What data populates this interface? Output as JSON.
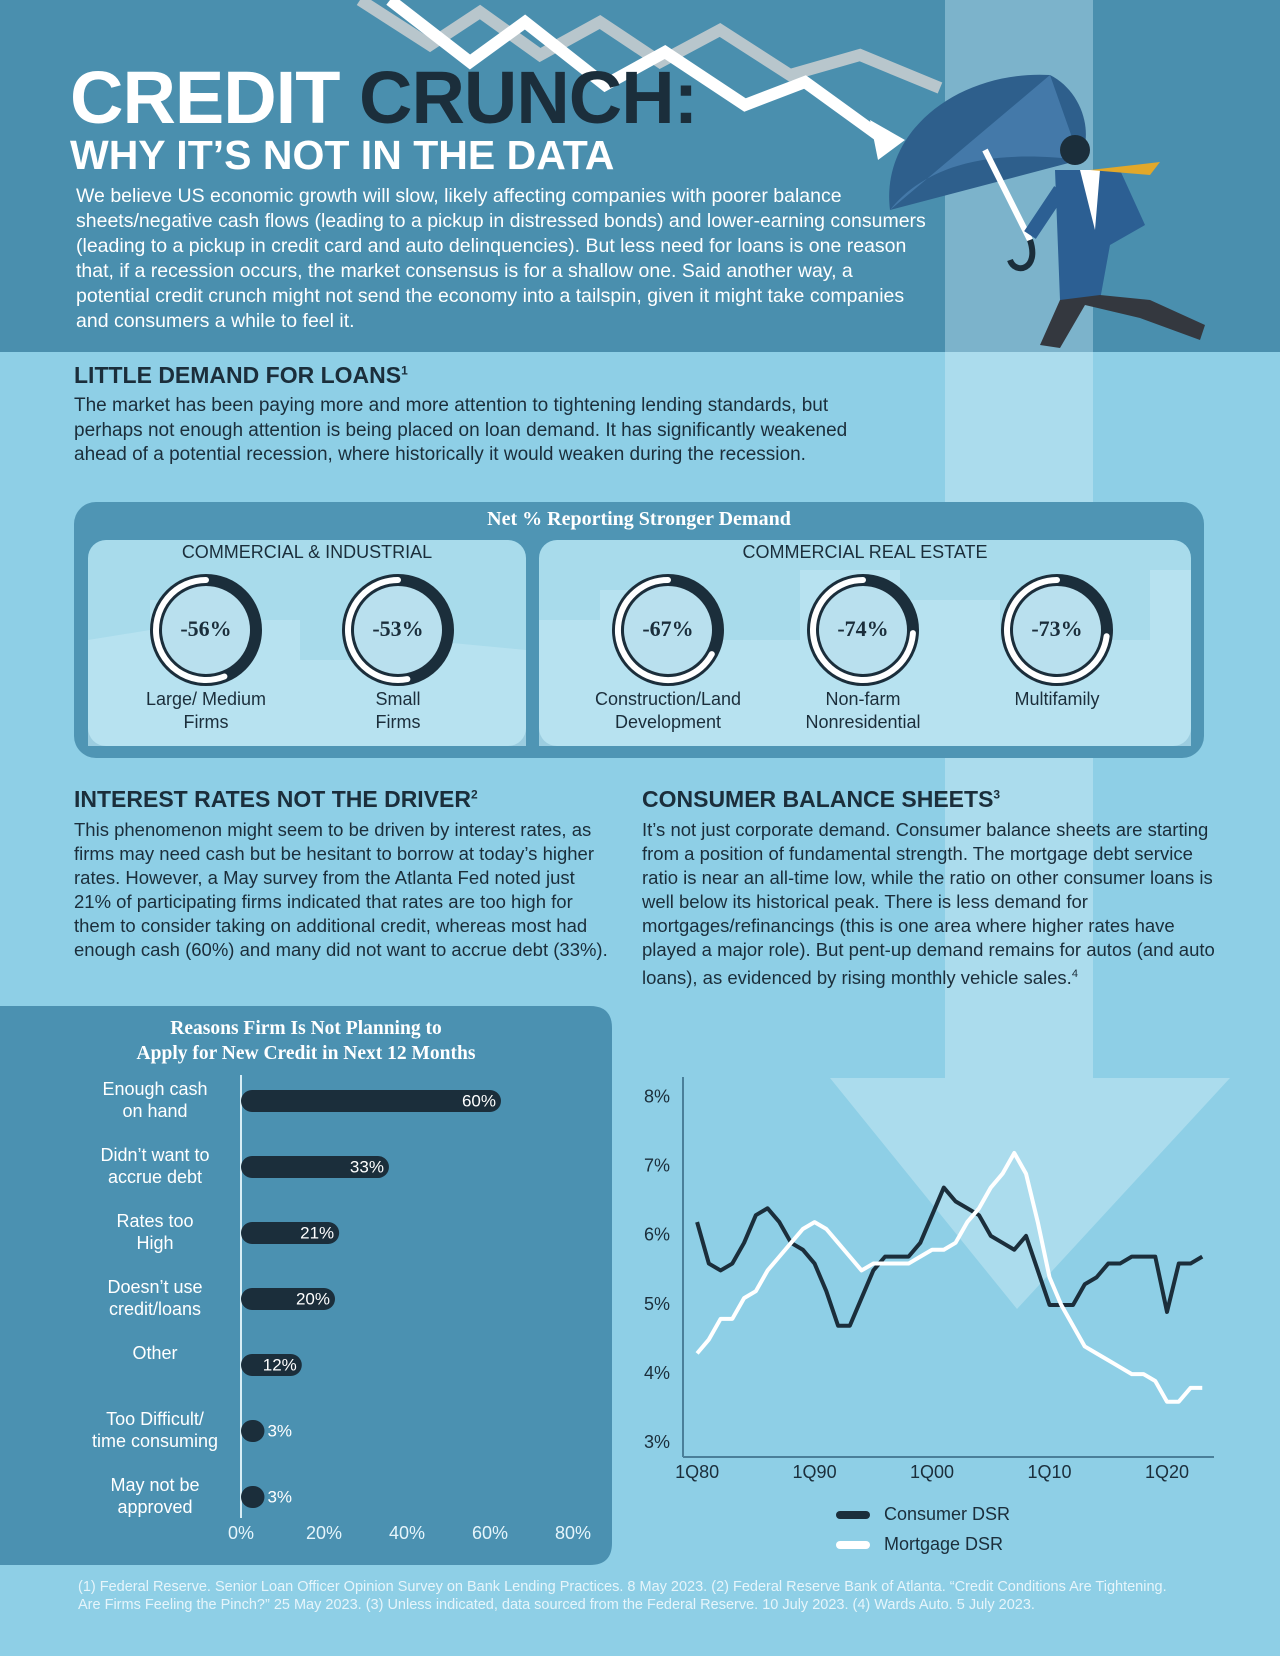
{
  "header": {
    "title_part1": "CREDIT",
    "title_part2": "CRUNCH:",
    "subtitle": "WHY IT’S NOT IN THE DATA",
    "intro": "We believe US economic growth will slow, likely affecting companies with poorer balance sheets/negative cash flows (leading to a pickup in distressed bonds) and lower-earning consumers (leading to a pickup in credit card and auto delinquencies). But less need for loans is one reason that, if a recession occurs, the market consensus is for a shallow one. Said another way, a potential credit crunch might not send the economy into a tailspin, given it might take companies and consumers a while to feel it."
  },
  "sections": [
    {
      "heading": "LITTLE DEMAND FOR LOANS",
      "note": "1",
      "text": "The market has been paying more and more attention to tightening lending standards, but perhaps not enough attention is being placed on loan demand. It has significantly weakened ahead of a potential recession, where historically it would weaken during the recession."
    },
    {
      "heading": "INTEREST RATES NOT THE DRIVER",
      "note": "2",
      "text": "This phenomenon might seem to be driven by interest rates, as firms may need cash but be hesitant to borrow at today’s higher rates. However, a May survey from the Atlanta Fed noted just 21% of participating firms indicated that rates are too high for them to consider taking on additional credit, whereas most had enough cash (60%) and many did not want to accrue debt (33%)."
    },
    {
      "heading": "CONSUMER BALANCE SHEETS",
      "note": "3",
      "text": "It’s not just corporate demand. Consumer balance sheets are starting from a position of fundamental strength. The mortgage debt service ratio is near an all-time low, while the ratio on other consumer loans is well below its historical peak. There is less demand for mortgages/refinancings (this is one area where higher rates have played a major role). But pent-up demand remains for autos (and auto loans), as evidenced by rising monthly vehicle sales.",
      "text_note": "4"
    }
  ],
  "footer": "(1) Federal Reserve. Senior Loan Officer Opinion Survey on Bank Lending Practices. 8 May 2023. (2) Federal Reserve Bank of Atlanta. “Credit Conditions Are Tightening. Are Firms Feeling the Pinch?” 25 May 2023. (3) Unless indicated, data sourced from the Federal Reserve. 10 July 2023. (4) Wards Auto. 5 July 2023.",
  "chart_data": [
    {
      "type": "gauge",
      "title": "Net % Reporting Stronger Demand",
      "color": "#ffffff",
      "groups": [
        {
          "name": "COMMERCIAL & INDUSTRIAL",
          "categories": [
            "Large/ Medium\nFirms",
            "Small\nFirms"
          ],
          "values": [
            -56,
            -53
          ],
          "value_labels": [
            "-56%",
            "-53%"
          ]
        },
        {
          "name": "COMMERCIAL REAL ESTATE",
          "categories": [
            "Construction/Land\nDevelopment",
            "Non-farm\nNonresidential",
            "Multifamily"
          ],
          "values": [
            -67,
            -74,
            -73
          ],
          "value_labels": [
            "-67%",
            "-74%",
            "-73%"
          ]
        }
      ]
    },
    {
      "type": "bar",
      "orientation": "horizontal",
      "title": "Reasons Firm Is Not Planning to\nApply for New Credit in Next 12 Months",
      "categories": [
        "Enough cash\non hand",
        "Didn’t want to\naccrue debt",
        "Rates too\nHigh",
        "Doesn’t use\ncredit/loans",
        "Other",
        "Too Difficult/\ntime consuming",
        "May not be\napproved"
      ],
      "values": [
        60,
        33,
        21,
        20,
        12,
        3,
        3
      ],
      "value_labels": [
        "60%",
        "33%",
        "21%",
        "20%",
        "12%",
        "3%",
        "3%"
      ],
      "color": "#1b2e3b",
      "xlim": [
        0,
        80
      ],
      "xticks": [
        {
          "value": 0,
          "label": "0%"
        },
        {
          "value": 20,
          "label": "20%"
        },
        {
          "value": 40,
          "label": "40%"
        },
        {
          "value": 60,
          "label": "60%"
        },
        {
          "value": 80,
          "label": "80%"
        }
      ]
    },
    {
      "type": "line",
      "x": [
        1980,
        1981,
        1982,
        1983,
        1984,
        1985,
        1986,
        1987,
        1988,
        1989,
        1990,
        1991,
        1992,
        1993,
        1994,
        1995,
        1996,
        1997,
        1998,
        1999,
        2000,
        2001,
        2002,
        2003,
        2004,
        2005,
        2006,
        2007,
        2008,
        2009,
        2010,
        2011,
        2012,
        2013,
        2014,
        2015,
        2016,
        2017,
        2018,
        2019,
        2020,
        2021,
        2022,
        2023
      ],
      "xlim": [
        1978.8,
        2024
      ],
      "xticks": [
        {
          "value": 1980,
          "label": "1Q80"
        },
        {
          "value": 1990,
          "label": "1Q90"
        },
        {
          "value": 2000,
          "label": "1Q00"
        },
        {
          "value": 2010,
          "label": "1Q10"
        },
        {
          "value": 2020,
          "label": "1Q20"
        }
      ],
      "ylim": [
        2.8,
        8.3
      ],
      "yticks": [
        {
          "value": 3,
          "label": "3%"
        },
        {
          "value": 4,
          "label": "4%"
        },
        {
          "value": 5,
          "label": "5%"
        },
        {
          "value": 6,
          "label": "6%"
        },
        {
          "value": 7,
          "label": "7%"
        },
        {
          "value": 8,
          "label": "8%"
        }
      ],
      "series": [
        {
          "name": "Consumer DSR",
          "color": "#1b2e3b",
          "values": [
            6.2,
            5.6,
            5.5,
            5.6,
            5.9,
            6.3,
            6.4,
            6.2,
            5.9,
            5.8,
            5.6,
            5.2,
            4.7,
            4.7,
            5.1,
            5.5,
            5.7,
            5.7,
            5.7,
            5.9,
            6.3,
            6.7,
            6.5,
            6.4,
            6.3,
            6.0,
            5.9,
            5.8,
            6.0,
            5.5,
            5.0,
            5.0,
            5.0,
            5.3,
            5.4,
            5.6,
            5.6,
            5.7,
            5.7,
            5.7,
            4.9,
            5.6,
            5.6,
            5.7
          ]
        },
        {
          "name": "Mortgage DSR",
          "color": "#ffffff",
          "values": [
            4.3,
            4.5,
            4.8,
            4.8,
            5.1,
            5.2,
            5.5,
            5.7,
            5.9,
            6.1,
            6.2,
            6.1,
            5.9,
            5.7,
            5.5,
            5.6,
            5.6,
            5.6,
            5.6,
            5.7,
            5.8,
            5.8,
            5.9,
            6.2,
            6.4,
            6.7,
            6.9,
            7.2,
            6.9,
            6.2,
            5.4,
            5.0,
            4.7,
            4.4,
            4.3,
            4.2,
            4.1,
            4.0,
            4.0,
            3.9,
            3.6,
            3.6,
            3.8,
            3.8
          ]
        }
      ]
    }
  ]
}
